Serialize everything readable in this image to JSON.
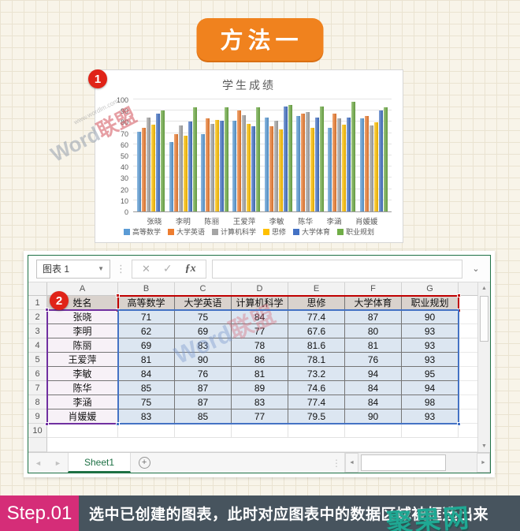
{
  "banner": {
    "label": "方法一"
  },
  "badges": {
    "one": "1",
    "two": "2"
  },
  "watermarks": {
    "site_en": "Word",
    "site_cn": "联盟",
    "site_url": "www.wordlm.com",
    "footer": "聚果网"
  },
  "chart_data": {
    "type": "bar",
    "title": "学生成绩",
    "categories": [
      "张晓",
      "李明",
      "陈丽",
      "王爱萍",
      "李敏",
      "陈华",
      "李涵",
      "肖媛媛"
    ],
    "series": [
      {
        "name": "高等数学",
        "color": "#5B9BD5",
        "values": [
          71,
          62,
          69,
          81,
          84,
          85,
          75,
          83
        ]
      },
      {
        "name": "大学英语",
        "color": "#ED7D31",
        "values": [
          75,
          69,
          83,
          90,
          76,
          87,
          87,
          85
        ]
      },
      {
        "name": "计算机科学",
        "color": "#A5A5A5",
        "values": [
          84,
          77,
          78,
          86,
          81,
          89,
          83,
          77
        ]
      },
      {
        "name": "思修",
        "color": "#FFC000",
        "values": [
          77.4,
          67.6,
          81.6,
          78.1,
          73.2,
          74.6,
          77.4,
          79.5
        ]
      },
      {
        "name": "大学体育",
        "color": "#4472C4",
        "values": [
          87,
          80,
          81,
          76,
          94,
          84,
          84,
          90
        ]
      },
      {
        "name": "职业规划",
        "color": "#70AD47",
        "values": [
          90,
          93,
          93,
          93,
          95,
          94,
          98,
          93
        ]
      }
    ],
    "xlabel": "",
    "ylabel": "",
    "ylim": [
      0,
      100
    ],
    "yticks": [
      0,
      10,
      20,
      30,
      40,
      50,
      60,
      70,
      80,
      90,
      100
    ],
    "grid": true,
    "legend_position": "bottom"
  },
  "spreadsheet": {
    "name_box": "图表 1",
    "icons": {
      "dropdown": "▼",
      "cancel": "✕",
      "enter": "✓",
      "fx": "ƒx",
      "chevron": "⌄",
      "up": "▲",
      "down": "▼",
      "left": "◄",
      "right": "►",
      "plus": "+",
      "dots": "⋮"
    },
    "columns": [
      "A",
      "B",
      "C",
      "D",
      "E",
      "F",
      "G"
    ],
    "rows": [
      {
        "num": "1",
        "cells": [
          "姓名",
          "高等数学",
          "大学英语",
          "计算机科学",
          "思修",
          "大学体育",
          "职业规划"
        ]
      },
      {
        "num": "2",
        "cells": [
          "张晓",
          "71",
          "75",
          "84",
          "77.4",
          "87",
          "90"
        ]
      },
      {
        "num": "3",
        "cells": [
          "李明",
          "62",
          "69",
          "77",
          "67.6",
          "80",
          "93"
        ]
      },
      {
        "num": "4",
        "cells": [
          "陈丽",
          "69",
          "83",
          "78",
          "81.6",
          "81",
          "93"
        ]
      },
      {
        "num": "5",
        "cells": [
          "王爱萍",
          "81",
          "90",
          "86",
          "78.1",
          "76",
          "93"
        ]
      },
      {
        "num": "6",
        "cells": [
          "李敏",
          "84",
          "76",
          "81",
          "73.2",
          "94",
          "95"
        ]
      },
      {
        "num": "7",
        "cells": [
          "陈华",
          "85",
          "87",
          "89",
          "74.6",
          "84",
          "94"
        ]
      },
      {
        "num": "8",
        "cells": [
          "李涵",
          "75",
          "87",
          "83",
          "77.4",
          "84",
          "98"
        ]
      },
      {
        "num": "9",
        "cells": [
          "肖媛媛",
          "83",
          "85",
          "77",
          "79.5",
          "90",
          "93"
        ]
      },
      {
        "num": "10",
        "cells": [
          "",
          "",
          "",
          "",
          "",
          "",
          ""
        ]
      }
    ],
    "selection": {
      "series_box": "#C00000",
      "category_box": "#7030A0",
      "values_box": "#4472C4"
    },
    "sheet_tab": "Sheet1"
  },
  "footer": {
    "step": "Step.01",
    "text": "选中已创建的图表，此时对应图表中的数据区域被框选出来"
  }
}
